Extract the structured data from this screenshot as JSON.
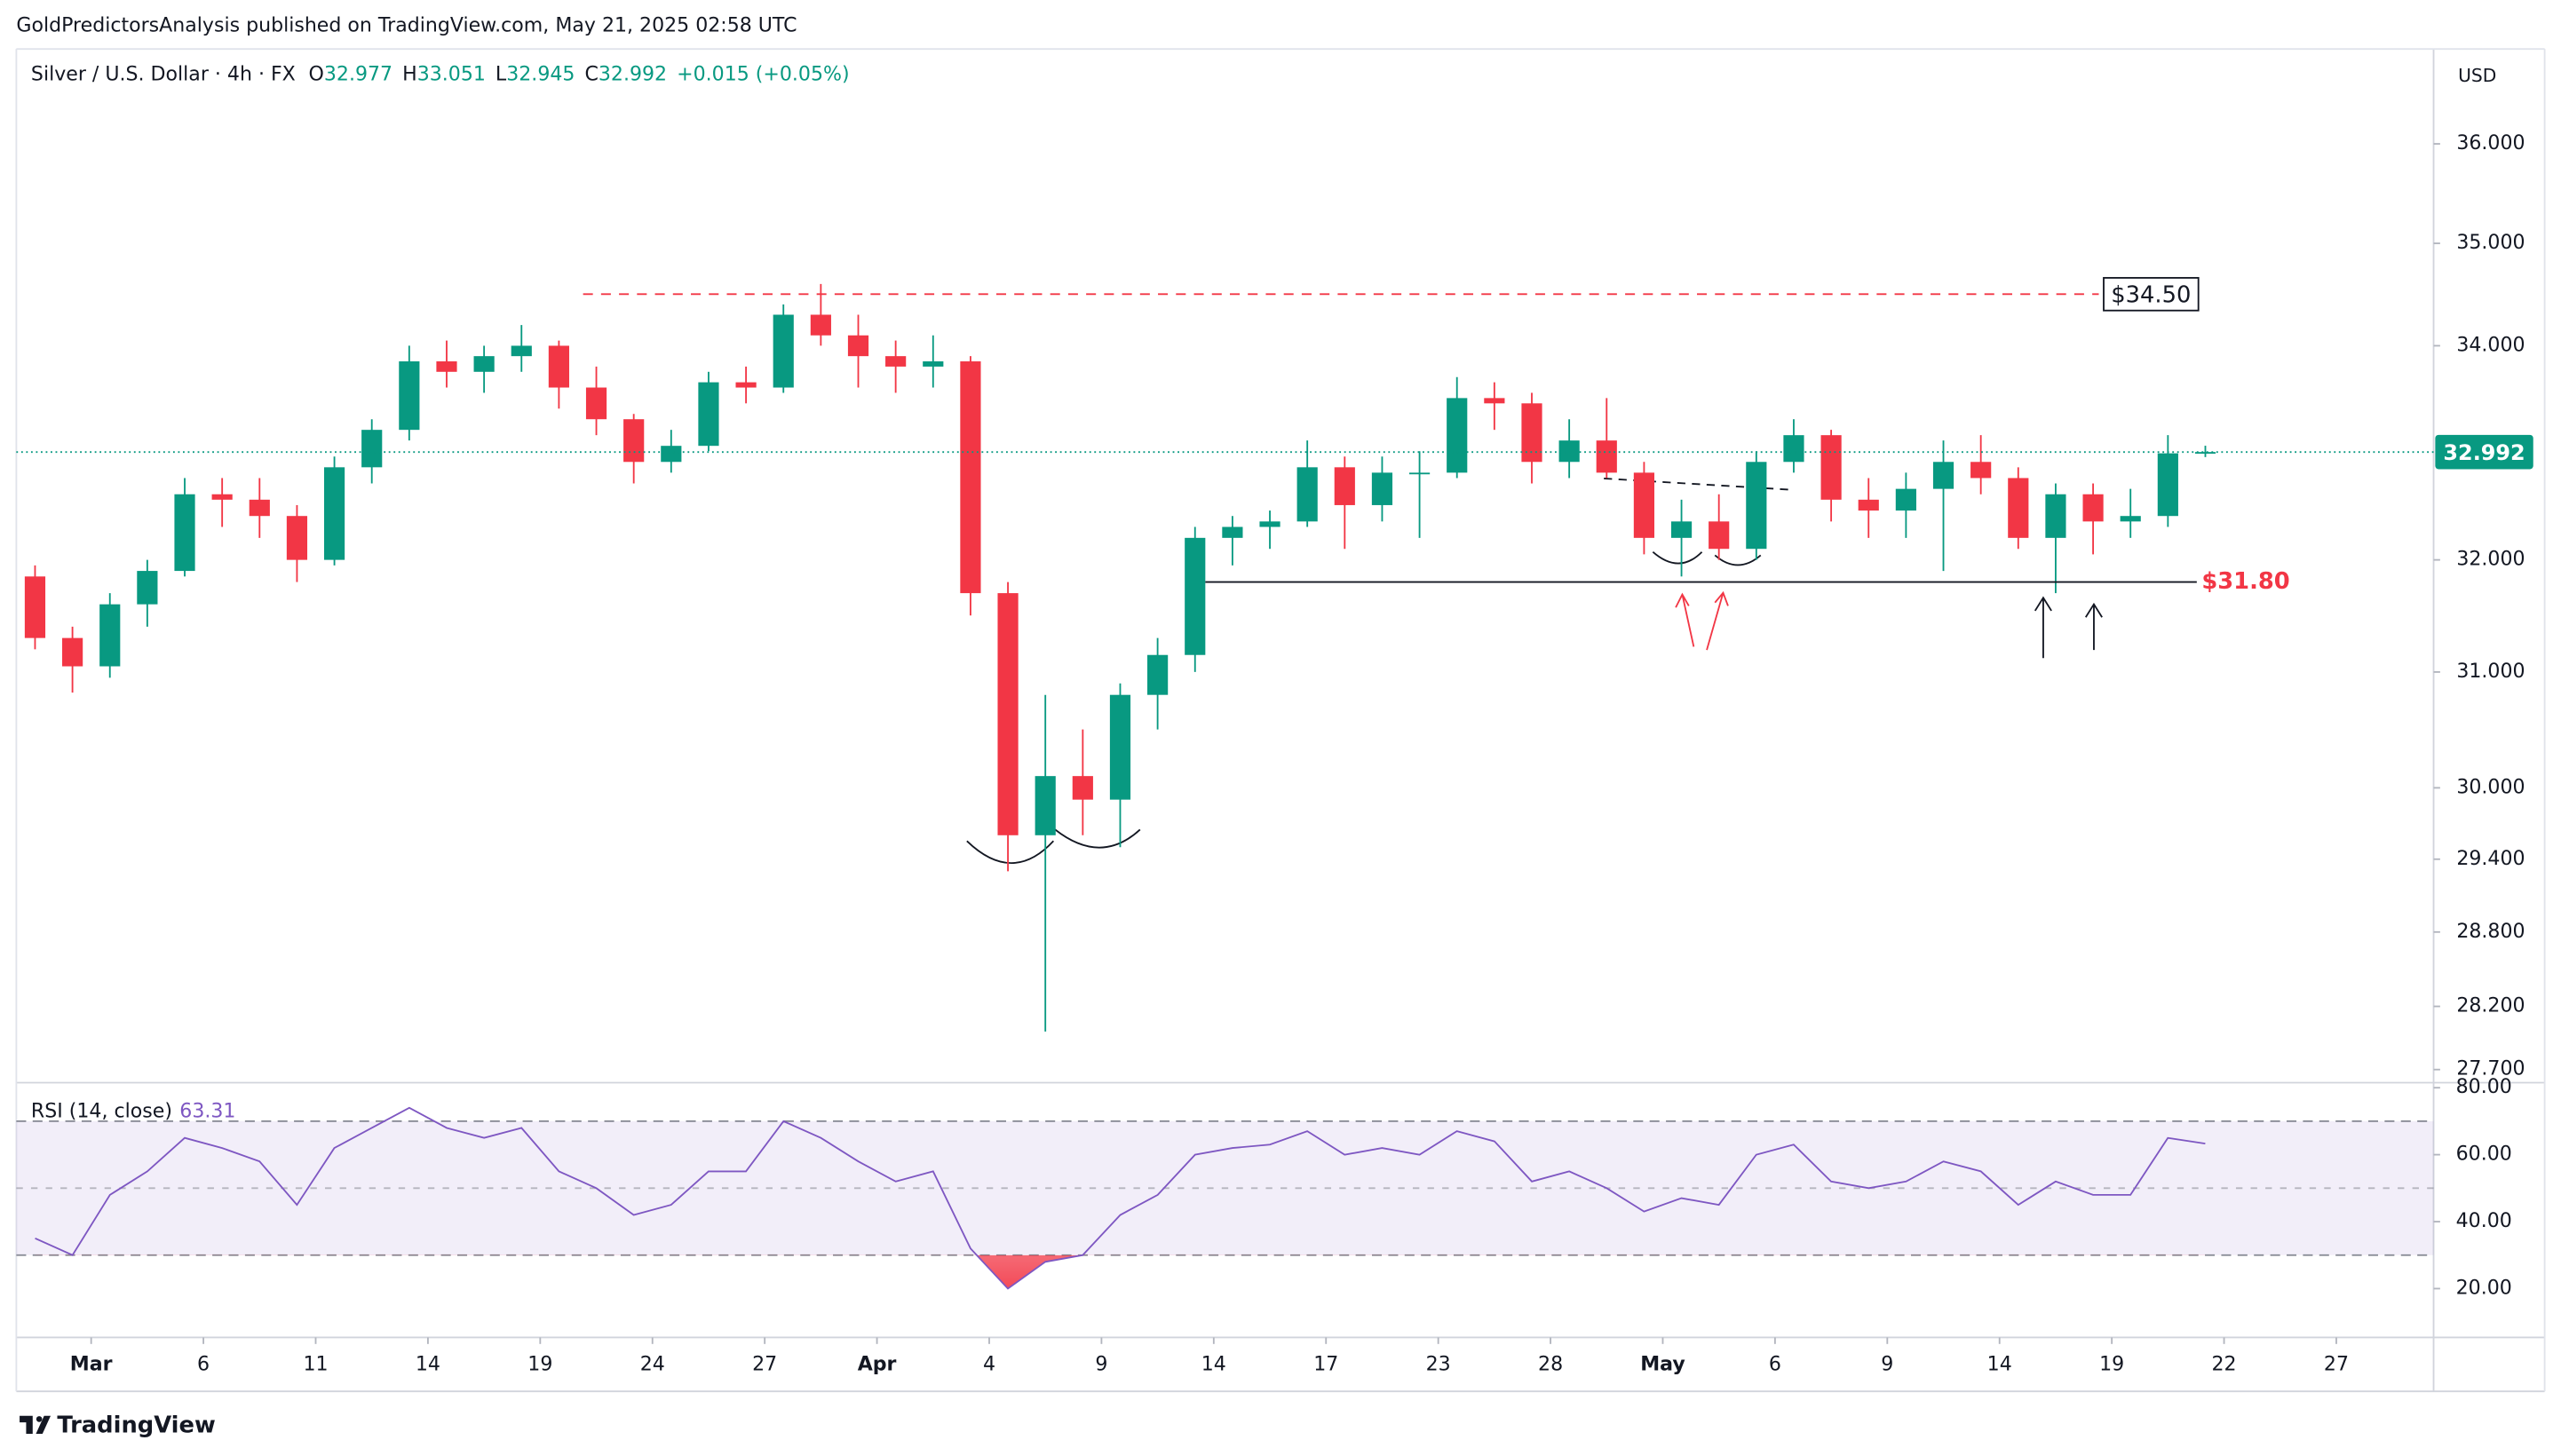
{
  "attribution": "GoldPredictorsAnalysis published on TradingView.com, May 21, 2025 02:58 UTC",
  "currency": "USD",
  "brand": "TradingView",
  "chart_data": [
    {
      "type": "candlestick",
      "title": "Silver / U.S. Dollar · 4h · FX",
      "ohlc_labels": [
        "O",
        "H",
        "L",
        "C"
      ],
      "change": "+0.015 (+0.05%)",
      "up_color": "#089981",
      "down_color": "#f23645",
      "log": true,
      "xlim": [
        0,
        64.6
      ],
      "ylim": [
        27.61,
        36.98
      ],
      "yticks": [
        {
          "value": 36,
          "label": "36.000"
        },
        {
          "value": 35,
          "label": "35.000"
        },
        {
          "value": 34,
          "label": "34.000"
        },
        {
          "value": 32,
          "label": "32.000"
        },
        {
          "value": 31,
          "label": "31.000"
        },
        {
          "value": 30,
          "label": "30.000"
        },
        {
          "value": 29.4,
          "label": "29.400"
        },
        {
          "value": 28.8,
          "label": "28.800"
        },
        {
          "value": 28.2,
          "label": "28.200"
        },
        {
          "value": 27.7,
          "label": "27.700"
        }
      ],
      "open": [
        31.85,
        31.3,
        31.05,
        31.6,
        31.9,
        32.6,
        32.55,
        32.4,
        32.0,
        32.85,
        33.2,
        33.85,
        33.75,
        33.9,
        34.0,
        33.6,
        33.3,
        32.9,
        33.05,
        33.65,
        33.6,
        34.3,
        34.1,
        33.9,
        33.8,
        33.85,
        31.7,
        29.6,
        30.1,
        29.9,
        30.8,
        31.15,
        32.2,
        32.3,
        32.35,
        32.85,
        32.5,
        32.8,
        32.8,
        33.5,
        33.45,
        32.9,
        33.1,
        32.8,
        32.2,
        32.35,
        32.1,
        32.9,
        33.15,
        32.55,
        32.45,
        32.65,
        32.9,
        32.75,
        32.2,
        32.6,
        32.35,
        32.4,
        32.977
      ],
      "high": [
        31.95,
        31.4,
        31.7,
        32.0,
        32.75,
        32.75,
        32.75,
        32.5,
        32.95,
        33.3,
        34.0,
        34.05,
        34.0,
        34.2,
        34.05,
        33.8,
        33.35,
        33.2,
        33.75,
        33.8,
        34.4,
        34.6,
        34.3,
        34.05,
        34.1,
        33.9,
        31.8,
        30.8,
        30.5,
        30.9,
        31.3,
        32.3,
        32.4,
        32.45,
        33.1,
        32.95,
        32.95,
        33.0,
        33.7,
        33.65,
        33.55,
        33.3,
        33.5,
        32.9,
        32.55,
        32.6,
        33.0,
        33.3,
        33.2,
        32.75,
        32.8,
        33.1,
        33.15,
        32.85,
        32.7,
        32.7,
        32.65,
        33.15,
        33.051
      ],
      "low": [
        31.2,
        30.82,
        30.95,
        31.4,
        31.85,
        32.3,
        32.2,
        31.8,
        31.95,
        32.7,
        33.1,
        33.6,
        33.55,
        33.75,
        33.4,
        33.15,
        32.7,
        32.8,
        33.0,
        33.45,
        33.55,
        34.0,
        33.6,
        33.55,
        33.6,
        31.5,
        29.3,
        28.0,
        29.6,
        29.5,
        30.5,
        31.0,
        31.95,
        32.1,
        32.3,
        32.1,
        32.35,
        32.2,
        32.75,
        33.2,
        32.7,
        32.75,
        32.75,
        32.05,
        31.85,
        32.0,
        32.0,
        32.8,
        32.35,
        32.2,
        32.2,
        31.9,
        32.6,
        32.1,
        31.7,
        32.05,
        32.2,
        32.3,
        32.945
      ],
      "close": [
        31.3,
        31.05,
        31.6,
        31.9,
        32.6,
        32.55,
        32.4,
        32.0,
        32.85,
        33.2,
        33.85,
        33.75,
        33.9,
        34.0,
        33.6,
        33.3,
        32.9,
        33.05,
        33.65,
        33.6,
        34.3,
        34.1,
        33.9,
        33.8,
        33.85,
        31.7,
        29.6,
        30.1,
        29.9,
        30.8,
        31.15,
        32.2,
        32.3,
        32.35,
        32.85,
        32.5,
        32.8,
        32.8,
        33.5,
        33.45,
        32.9,
        33.1,
        32.8,
        32.2,
        32.35,
        32.1,
        32.9,
        33.15,
        32.55,
        32.45,
        32.65,
        32.9,
        32.75,
        32.2,
        32.6,
        32.35,
        32.4,
        32.98,
        32.992
      ],
      "levels": [
        {
          "value": 34.5,
          "label": "$34.50",
          "color": "#f23645"
        },
        {
          "value": 31.8,
          "label": "$31.80",
          "color": "#131722"
        }
      ]
    },
    {
      "type": "line",
      "title": "RSI (14, close)",
      "color": "#7e57c2",
      "xlim": [
        0,
        64.6
      ],
      "ylim": [
        5.9,
        81.5
      ],
      "yticks": [
        {
          "value": 80,
          "label": "80.00"
        },
        {
          "value": 60,
          "label": "60.00"
        },
        {
          "value": 40,
          "label": "40.00"
        },
        {
          "value": 20,
          "label": "20.00"
        }
      ],
      "bands": [
        70,
        50,
        30
      ],
      "values": [
        35,
        30,
        48,
        55,
        65,
        62,
        58,
        45,
        62,
        68,
        74,
        68,
        65,
        68,
        55,
        50,
        42,
        45,
        55,
        55,
        70,
        65,
        58,
        52,
        55,
        32,
        20,
        28,
        30,
        42,
        48,
        60,
        62,
        63,
        67,
        60,
        62,
        60,
        67,
        64,
        52,
        55,
        50,
        43,
        47,
        45,
        60,
        63,
        52,
        50,
        52,
        58,
        55,
        45,
        52,
        48,
        48,
        65,
        63.31
      ],
      "xticks": [
        {
          "value": 2,
          "label": "Mar"
        },
        {
          "value": 5,
          "label": "6"
        },
        {
          "value": 8,
          "label": "11"
        },
        {
          "value": 11,
          "label": "14"
        },
        {
          "value": 14,
          "label": "19"
        },
        {
          "value": 17,
          "label": "24"
        },
        {
          "value": 20,
          "label": "27"
        },
        {
          "value": 23,
          "label": "Apr"
        },
        {
          "value": 26,
          "label": "4"
        },
        {
          "value": 29,
          "label": "9"
        },
        {
          "value": 32,
          "label": "14"
        },
        {
          "value": 35,
          "label": "17"
        },
        {
          "value": 38,
          "label": "23"
        },
        {
          "value": 41,
          "label": "28"
        },
        {
          "value": 44,
          "label": "May"
        },
        {
          "value": 47,
          "label": "6"
        },
        {
          "value": 50,
          "label": "9"
        },
        {
          "value": 53,
          "label": "14"
        },
        {
          "value": 56,
          "label": "19"
        },
        {
          "value": 59,
          "label": "22"
        },
        {
          "value": 62,
          "label": "27"
        }
      ]
    }
  ]
}
